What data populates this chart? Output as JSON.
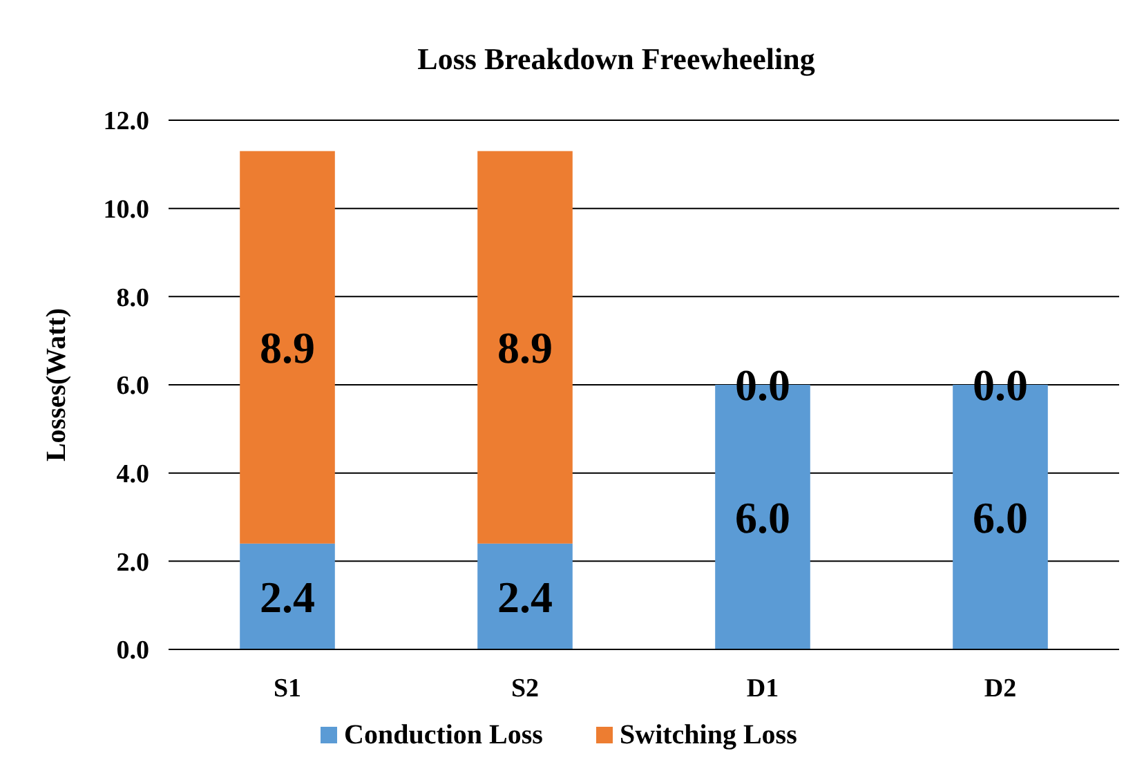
{
  "chart_data": {
    "type": "bar",
    "title": "Loss Breakdown Freewheeling",
    "ylabel": "Losses(Watt)",
    "categories": [
      "S1",
      "S2",
      "D1",
      "D2"
    ],
    "stacked": true,
    "series": [
      {
        "name": "Conduction Loss",
        "color": "#5b9bd5",
        "values": [
          2.4,
          2.4,
          6.0,
          6.0
        ],
        "value_labels": [
          "2.4",
          "2.4",
          "6.0",
          "6.0"
        ]
      },
      {
        "name": "Switching Loss",
        "color": "#ed7d31",
        "values": [
          8.9,
          8.9,
          0.0,
          0.0
        ],
        "value_labels": [
          "8.9",
          "8.9",
          "0.0",
          "0.0"
        ]
      }
    ],
    "ylim": [
      0,
      12
    ],
    "yticks": [
      {
        "value": 0,
        "label": "0.0"
      },
      {
        "value": 2,
        "label": "2.0"
      },
      {
        "value": 4,
        "label": "4.0"
      },
      {
        "value": 6,
        "label": "6.0"
      },
      {
        "value": 8,
        "label": "8.0"
      },
      {
        "value": 10,
        "label": "10.0"
      },
      {
        "value": 12,
        "label": "12.0"
      }
    ],
    "grid": "y",
    "legend": "bottom"
  }
}
